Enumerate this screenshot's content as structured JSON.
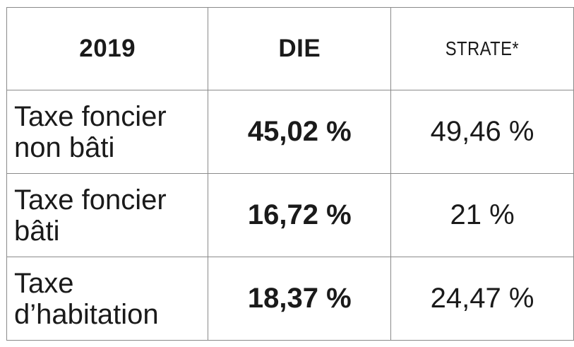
{
  "table": {
    "header": {
      "year": "2019",
      "col_die": "DIE",
      "col_strate": "STRATE*"
    },
    "rows": [
      {
        "label": "Taxe foncier non bâti",
        "die": "45,02 %",
        "strate": "49,46 %"
      },
      {
        "label": "Taxe foncier bâti",
        "die": "16,72 %",
        "strate": "21 %"
      },
      {
        "label": "Taxe d’habitation",
        "die": "18,37 %",
        "strate": "24,47 %"
      }
    ]
  }
}
